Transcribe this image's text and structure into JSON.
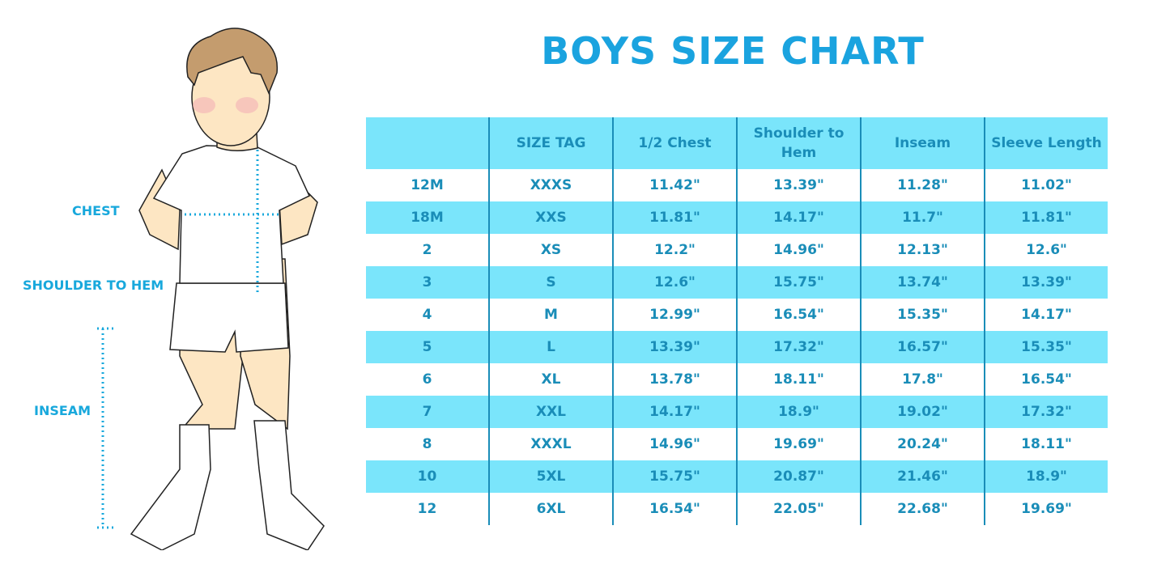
{
  "title": "BOYS SIZE CHART",
  "figure_labels": {
    "chest": "CHEST",
    "shoulder_to_hem": "SHOULDER TO HEM",
    "inseam": "INSEAM"
  },
  "colors": {
    "title": "#1aa3df",
    "header_bg": "#7ae5fb",
    "text": "#1a8db8"
  },
  "table": {
    "headers": [
      "",
      "SIZE TAG",
      "1/2 Chest",
      "Shoulder to Hem",
      "Inseam",
      "Sleeve Length"
    ],
    "rows": [
      [
        "12M",
        "XXXS",
        "11.42\"",
        "13.39\"",
        "11.28\"",
        "11.02\""
      ],
      [
        "18M",
        "XXS",
        "11.81\"",
        "14.17\"",
        "11.7\"",
        "11.81\""
      ],
      [
        "2",
        "XS",
        "12.2\"",
        "14.96\"",
        "12.13\"",
        "12.6\""
      ],
      [
        "3",
        "S",
        "12.6\"",
        "15.75\"",
        "13.74\"",
        "13.39\""
      ],
      [
        "4",
        "M",
        "12.99\"",
        "16.54\"",
        "15.35\"",
        "14.17\""
      ],
      [
        "5",
        "L",
        "13.39\"",
        "17.32\"",
        "16.57\"",
        "15.35\""
      ],
      [
        "6",
        "XL",
        "13.78\"",
        "18.11\"",
        "17.8\"",
        "16.54\""
      ],
      [
        "7",
        "XXL",
        "14.17\"",
        "18.9\"",
        "19.02\"",
        "17.32\""
      ],
      [
        "8",
        "XXXL",
        "14.96\"",
        "19.69\"",
        "20.24\"",
        "18.11\""
      ],
      [
        "10",
        "5XL",
        "15.75\"",
        "20.87\"",
        "21.46\"",
        "18.9\""
      ],
      [
        "12",
        "6XL",
        "16.54\"",
        "22.05\"",
        "22.68\"",
        "19.69\""
      ]
    ]
  }
}
